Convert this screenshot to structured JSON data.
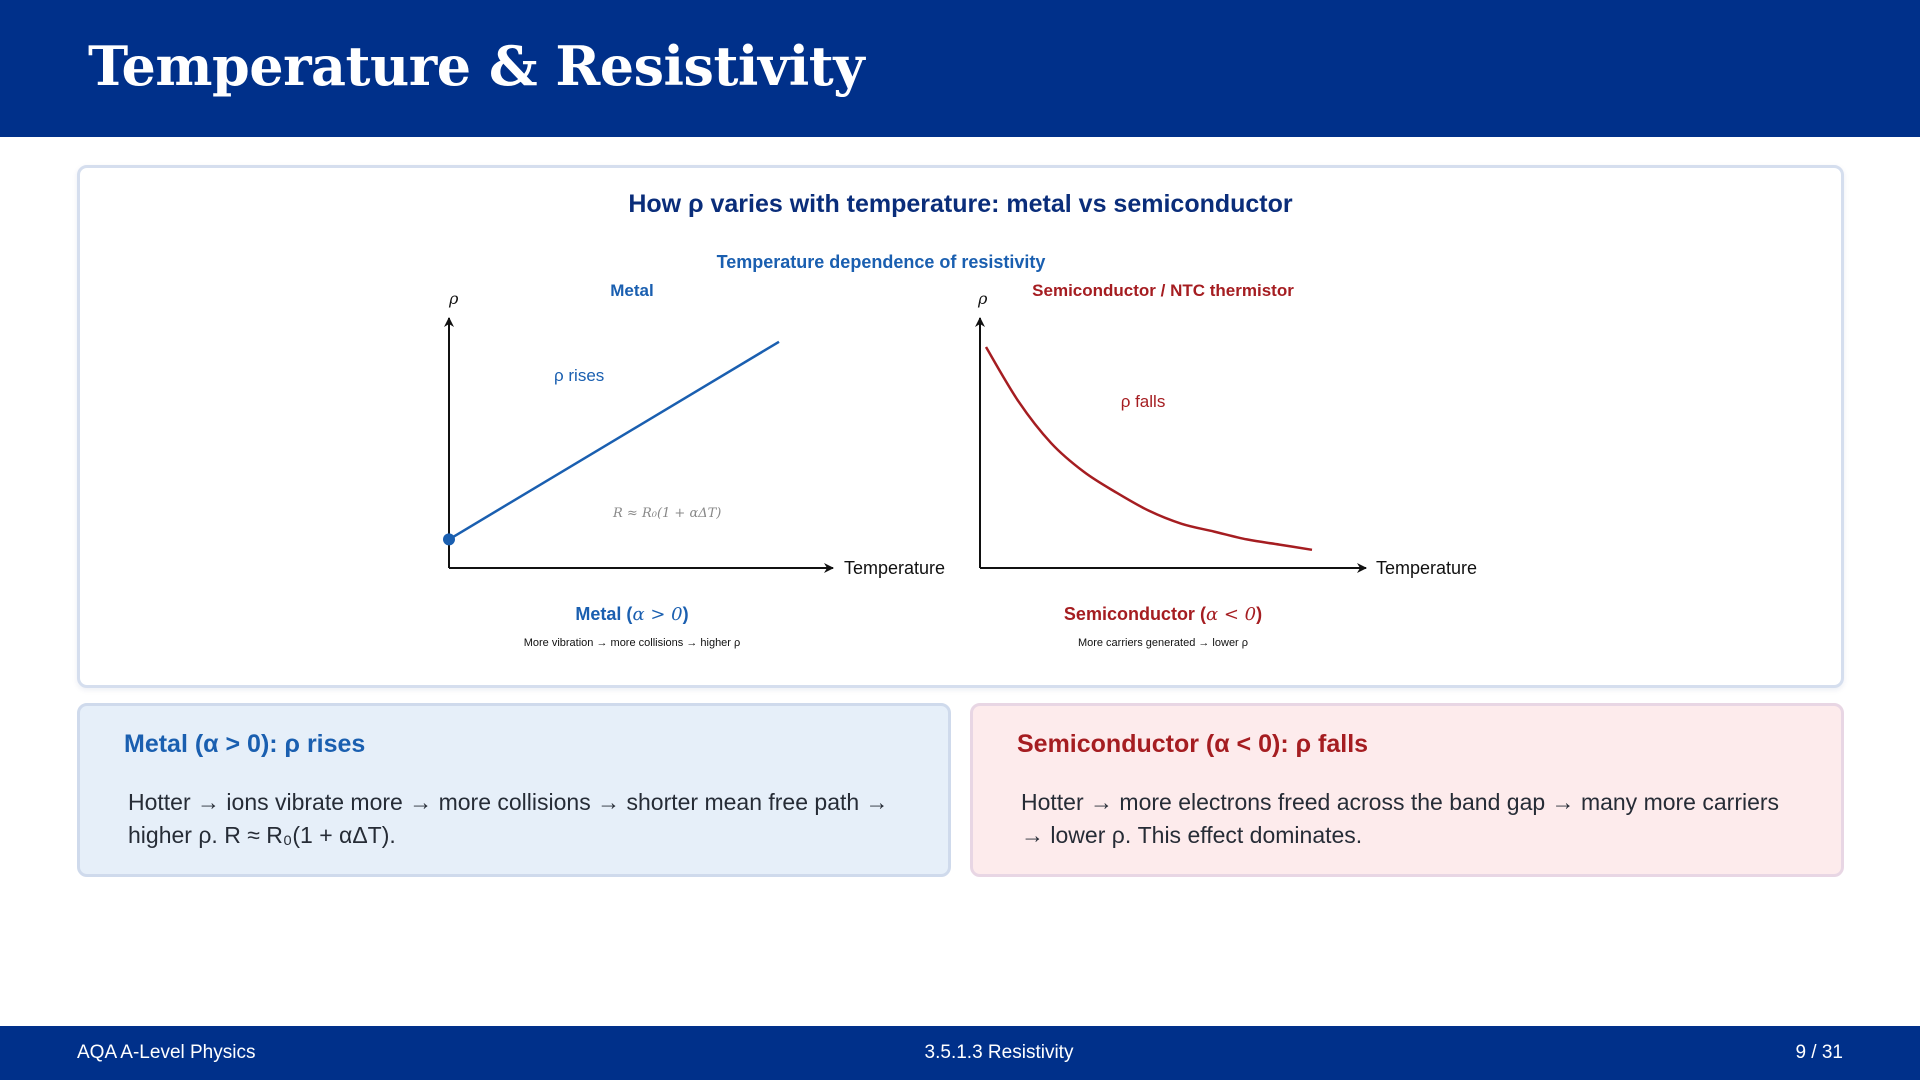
{
  "header": {
    "title": "Temperature & Resistivity"
  },
  "figure": {
    "caption": "How ρ varies with temperature: metal vs semiconductor",
    "suptitle": "Temperature dependence of resistivity",
    "metal": {
      "panel_title": "Metal",
      "y_label": "ρ",
      "x_label": "Temperature",
      "annotation": "ρ rises",
      "formula": "R ≈ R₀(1 + αΔT)",
      "sub_title_prefix": "Metal (",
      "sub_title_math": "α > 0",
      "sub_title_suffix": ")",
      "note": "More vibration → more collisions → higher ρ"
    },
    "semiconductor": {
      "panel_title": "Semiconductor / NTC thermistor",
      "y_label": "ρ",
      "x_label": "Temperature",
      "annotation": "ρ falls",
      "sub_title_prefix": "Semiconductor (",
      "sub_title_math": "α < 0",
      "sub_title_suffix": ")",
      "note": "More carriers generated → lower ρ"
    },
    "colors": {
      "metal": "#1a5fb0",
      "semiconductor": "#a51d21",
      "axis": "#111111"
    }
  },
  "chart_data": [
    {
      "type": "line",
      "title": "Metal",
      "xlabel": "Temperature",
      "ylabel": "ρ",
      "x": [
        0,
        1
      ],
      "y": [
        0.11,
        0.87
      ],
      "note": "linear increase from a nonzero intercept"
    },
    {
      "type": "line",
      "title": "Semiconductor / NTC thermistor",
      "xlabel": "Temperature",
      "ylabel": "ρ",
      "x": [
        0,
        0.1,
        0.2,
        0.3,
        0.4,
        0.5,
        0.6,
        0.7,
        0.8,
        0.9,
        1.0
      ],
      "y": [
        0.85,
        0.64,
        0.48,
        0.37,
        0.29,
        0.22,
        0.17,
        0.14,
        0.11,
        0.09,
        0.07
      ],
      "note": "exponential decay"
    }
  ],
  "boxes": {
    "metal": {
      "heading": "Metal (α > 0): ρ rises",
      "body": "Hotter → ions vibrate more → more collisions → shorter mean free path → higher ρ. R ≈ R₀(1 + αΔT)."
    },
    "semiconductor": {
      "heading": "Semiconductor (α < 0): ρ falls",
      "body": "Hotter → more electrons freed across the band gap → many more carriers → lower ρ. This effect dominates."
    }
  },
  "footer": {
    "left": "AQA A-Level Physics",
    "center": "3.5.1.3  Resistivity",
    "right": "9 / 31"
  }
}
